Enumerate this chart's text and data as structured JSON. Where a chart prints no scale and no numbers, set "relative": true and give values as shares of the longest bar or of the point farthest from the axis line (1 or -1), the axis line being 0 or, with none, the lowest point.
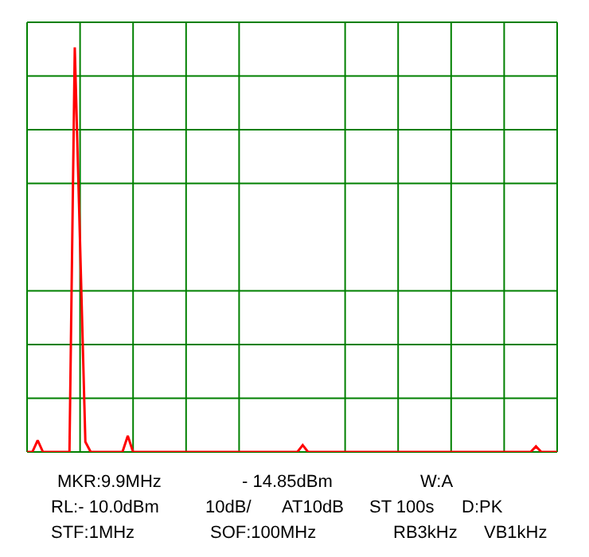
{
  "chart_data": {
    "type": "line",
    "relative": true,
    "grid": true,
    "legend": false,
    "categories": [
      null,
      null,
      null,
      null,
      null,
      null,
      null,
      null,
      null,
      null,
      null,
      null,
      null,
      null,
      null,
      null,
      null,
      null,
      null,
      null,
      null,
      null,
      null,
      null,
      null,
      null,
      null,
      null,
      null,
      null,
      null,
      null,
      null,
      null,
      null,
      null,
      null,
      null,
      null,
      null,
      null,
      null,
      null,
      null,
      null,
      null,
      null,
      null,
      null,
      null,
      null,
      null,
      null,
      null,
      null,
      null,
      null,
      null,
      null,
      null,
      null,
      null,
      null,
      null,
      null,
      null,
      null,
      null,
      null,
      null,
      null,
      null,
      null,
      null,
      null,
      null,
      null,
      null,
      null,
      null,
      null,
      null,
      null,
      null,
      null,
      null,
      null,
      null,
      null,
      null,
      null,
      null,
      null,
      null,
      null,
      null,
      null,
      null,
      null,
      null,
      null
    ],
    "series": [
      {
        "color": "#ff0000",
        "values": [
          0,
          0,
          0.029,
          0,
          0,
          0,
          0,
          0,
          0,
          1,
          0.515,
          0.025,
          0,
          0,
          0,
          0,
          0,
          0,
          0,
          0.04,
          0,
          0,
          0,
          0,
          0,
          0,
          0,
          0,
          0,
          0,
          0,
          0,
          0,
          0,
          0,
          0,
          0,
          0,
          0,
          0,
          0,
          0,
          0,
          0,
          0,
          0,
          0,
          0,
          0,
          0,
          0,
          0,
          0.017,
          0,
          0,
          0,
          0,
          0,
          0,
          0,
          0,
          0,
          0,
          0,
          0,
          0,
          0,
          0,
          0,
          0,
          0,
          0,
          0,
          0,
          0,
          0,
          0,
          0,
          0,
          0,
          0,
          0,
          0,
          0,
          0,
          0,
          0,
          0,
          0,
          0,
          0,
          0,
          0,
          0,
          0,
          0,
          0.014,
          0,
          0,
          0,
          0
        ]
      }
    ],
    "annotations": [
      "MKR:9.9MHz",
      "- 14.85dBm",
      "W:A",
      "RL:- 10.0dBm",
      "10dB/",
      "AT10dB",
      "ST 100s",
      "D:PK",
      "STF:1MHz",
      "SOF:100MHz",
      "RB3kHz",
      "VB1kHz"
    ]
  }
}
